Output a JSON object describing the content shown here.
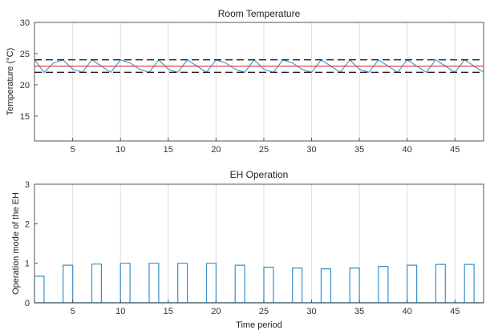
{
  "chart_data": [
    {
      "type": "line",
      "title": "Room Temperature",
      "xlabel": "",
      "ylabel": "Temperature (°C)",
      "xlim": [
        1,
        48
      ],
      "ylim": [
        11,
        30
      ],
      "xticks": [
        5,
        10,
        15,
        20,
        25,
        30,
        35,
        40,
        45
      ],
      "yticks": [
        15,
        20,
        25,
        30
      ],
      "grid": "x",
      "series": [
        {
          "color": "#3a90c8",
          "style": "solid",
          "x": [
            1,
            2,
            3,
            4,
            5,
            6,
            7,
            8,
            9,
            10,
            11,
            12,
            13,
            14,
            15,
            16,
            17,
            18,
            19,
            20,
            21,
            22,
            23,
            24,
            25,
            26,
            27,
            28,
            29,
            30,
            31,
            32,
            33,
            34,
            35,
            36,
            37,
            38,
            39,
            40,
            41,
            42,
            43,
            44,
            45,
            46,
            47,
            48
          ],
          "y": [
            24,
            22,
            23.5,
            24,
            22.5,
            22,
            24,
            23,
            22,
            24,
            23.5,
            22.5,
            22,
            24,
            22.5,
            22,
            24,
            23,
            22,
            24,
            23.5,
            22.5,
            22,
            24,
            22.5,
            22,
            24,
            23.5,
            22.5,
            22,
            24,
            23,
            22,
            24,
            22.5,
            22,
            24,
            23,
            22,
            24,
            23,
            22,
            24,
            23,
            22,
            24,
            23,
            22
          ]
        },
        {
          "color": "#e02020",
          "style": "solid",
          "x": [
            1,
            48
          ],
          "y": [
            23,
            23
          ]
        },
        {
          "color": "#222222",
          "style": "dashed",
          "x": [
            1,
            48
          ],
          "y": [
            24,
            24
          ]
        },
        {
          "color": "#222222",
          "style": "dashed",
          "x": [
            1,
            48
          ],
          "y": [
            22,
            22
          ]
        }
      ]
    },
    {
      "type": "bar",
      "title": "EH Operation",
      "xlabel": "Time period",
      "ylabel": "Operation mode of the EH",
      "xlim": [
        1,
        48
      ],
      "ylim": [
        0,
        3
      ],
      "xticks": [
        5,
        10,
        15,
        20,
        25,
        30,
        35,
        40,
        45
      ],
      "yticks": [
        0,
        1,
        2,
        3
      ],
      "grid": "x",
      "series": [
        {
          "color": "#3a90c8",
          "x": [
            1,
            4,
            7,
            10,
            13,
            16,
            19,
            22,
            25,
            28,
            31,
            34,
            37,
            40,
            43,
            46
          ],
          "values": [
            0.67,
            0.95,
            0.98,
            1.0,
            1.0,
            1.0,
            1.0,
            0.95,
            0.9,
            0.88,
            0.86,
            0.88,
            0.92,
            0.95,
            0.97,
            0.97
          ]
        }
      ]
    }
  ]
}
